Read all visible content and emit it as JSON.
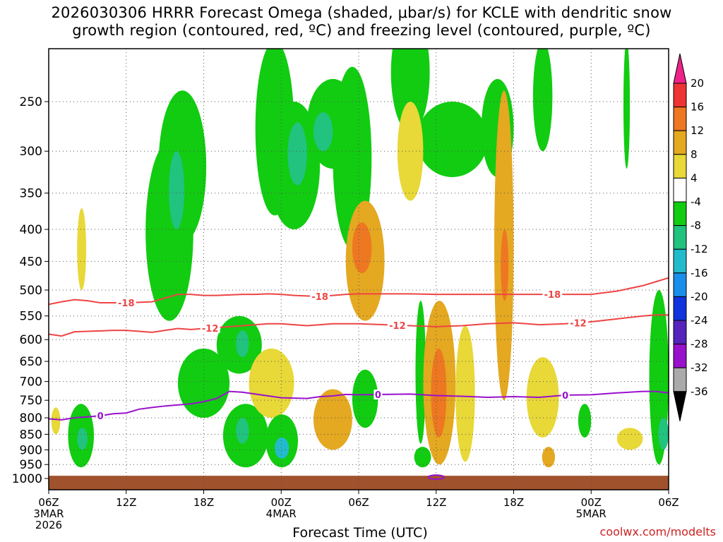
{
  "header": {
    "title": "2026030306 HRRR Forecast Omega (shaded, μbar/s) for KCLE with dendritic snow\ngrowth region (contoured, red, ºC) and freezing level (contoured, purple, ºC)"
  },
  "footer": {
    "xlabel": "Forecast Time (UTC)",
    "credit": "coolwx.com/modelts"
  },
  "chart_data": {
    "type": "heatmap",
    "title": "2026030306 HRRR Forecast Omega (shaded, μbar/s) for KCLE with dendritic snow growth region (contoured, red, ºC) and freezing level (contoured, purple, ºC)",
    "xlabel": "Forecast Time (UTC)",
    "ylabel": "",
    "y_scale": "log-pressure",
    "ylim": [
      1000,
      200
    ],
    "xlim": [
      0,
      48
    ],
    "grid": true,
    "y_ticks": [
      250,
      300,
      350,
      400,
      450,
      500,
      550,
      600,
      650,
      700,
      750,
      800,
      850,
      900,
      950,
      1000
    ],
    "x_ticks": [
      {
        "hour": 0,
        "label": [
          "06Z",
          "3MAR",
          "2026"
        ]
      },
      {
        "hour": 6,
        "label": [
          "12Z"
        ]
      },
      {
        "hour": 12,
        "label": [
          "18Z"
        ]
      },
      {
        "hour": 18,
        "label": [
          "00Z",
          "4MAR"
        ]
      },
      {
        "hour": 24,
        "label": [
          "06Z"
        ]
      },
      {
        "hour": 30,
        "label": [
          "12Z"
        ]
      },
      {
        "hour": 36,
        "label": [
          "18Z"
        ]
      },
      {
        "hour": 42,
        "label": [
          "00Z",
          "5MAR"
        ]
      },
      {
        "hour": 48,
        "label": [
          "06Z"
        ]
      }
    ],
    "colorbar": {
      "labels": [
        20,
        16,
        12,
        8,
        4,
        -4,
        -8,
        -12,
        -16,
        -20,
        -24,
        -28,
        -32,
        -36
      ],
      "bins": [
        {
          "from": 16,
          "to": 20,
          "color": "#ee3333"
        },
        {
          "from": 12,
          "to": 16,
          "color": "#ee7722"
        },
        {
          "from": 8,
          "to": 12,
          "color": "#e4a821"
        },
        {
          "from": 4,
          "to": 8,
          "color": "#e8d838"
        },
        {
          "from": -4,
          "to": 4,
          "color": "#ffffff"
        },
        {
          "from": -8,
          "to": -4,
          "color": "#11cc11"
        },
        {
          "from": -12,
          "to": -8,
          "color": "#22c27f"
        },
        {
          "from": -16,
          "to": -12,
          "color": "#22bbcc"
        },
        {
          "from": -20,
          "to": -16,
          "color": "#1a8eea"
        },
        {
          "from": -24,
          "to": -20,
          "color": "#1133dd"
        },
        {
          "from": -28,
          "to": -24,
          "color": "#5522bb"
        },
        {
          "from": -32,
          "to": -28,
          "color": "#9911cc"
        },
        {
          "from": -36,
          "to": -32,
          "color": "#aaaaaa"
        }
      ],
      "top_arrow_color": "#ee2288",
      "bottom_arrow_color": "#000000"
    },
    "series": [
      {
        "name": "-18",
        "color": "#ee4444",
        "x": [
          0,
          1,
          2,
          3,
          4,
          5,
          6,
          7,
          8,
          9,
          10,
          11,
          12,
          13,
          14,
          15,
          16,
          17,
          18,
          19,
          20,
          21,
          22,
          23,
          24,
          26,
          28,
          30,
          32,
          34,
          36,
          38,
          40,
          42,
          44,
          46,
          47,
          48
        ],
        "y": [
          527,
          522,
          518,
          520,
          524,
          524,
          524,
          523,
          522,
          515,
          508,
          508,
          510,
          510,
          509,
          508,
          508,
          507,
          508,
          510,
          511,
          512,
          510,
          508,
          507,
          507,
          507,
          508,
          508,
          508,
          508,
          508,
          508,
          508,
          502,
          492,
          485,
          478
        ],
        "labels_at": [
          6,
          21,
          39
        ]
      },
      {
        "name": "-12",
        "color": "#ee4444",
        "x": [
          0,
          1,
          2,
          3,
          4,
          5,
          6,
          7,
          8,
          9,
          10,
          11,
          12,
          13,
          14,
          15,
          16,
          17,
          18,
          19,
          20,
          21,
          22,
          23,
          24,
          26,
          28,
          30,
          32,
          34,
          36,
          38,
          40,
          42,
          44,
          46,
          47,
          48
        ],
        "y": [
          588,
          592,
          583,
          582,
          581,
          580,
          580,
          582,
          584,
          580,
          576,
          578,
          576,
          574,
          572,
          570,
          568,
          566,
          566,
          568,
          570,
          568,
          566,
          566,
          566,
          568,
          570,
          572,
          570,
          566,
          564,
          568,
          566,
          562,
          556,
          550,
          548,
          548
        ],
        "labels_at": [
          12.5,
          27,
          41
        ]
      },
      {
        "name": "0",
        "color": "#9911cc",
        "x": [
          0,
          1,
          2,
          3,
          4,
          5,
          6,
          7,
          8,
          9,
          10,
          11,
          12,
          13,
          14,
          15,
          16,
          17,
          18,
          19,
          20,
          21,
          22,
          23,
          24,
          26,
          28,
          30,
          32,
          34,
          36,
          38,
          40,
          42,
          44,
          46,
          47,
          48
        ],
        "y": [
          803,
          806,
          800,
          797,
          794,
          788,
          786,
          775,
          770,
          766,
          763,
          760,
          754,
          745,
          726,
          728,
          733,
          738,
          743,
          744,
          745,
          740,
          738,
          734,
          735,
          734,
          733,
          737,
          739,
          742,
          740,
          742,
          736,
          735,
          730,
          726,
          726,
          730
        ],
        "labels_at": [
          4,
          25.5,
          40
        ]
      }
    ],
    "freezing_level_small_loop": {
      "x": 30,
      "y": 995,
      "label": "0"
    },
    "omega_regions": [
      {
        "value": -6,
        "x": [
          1.5,
          3.5
        ],
        "p": [
          760,
          960
        ]
      },
      {
        "value": -10,
        "x": [
          2.2,
          3.0
        ],
        "p": [
          830,
          900
        ]
      },
      {
        "value": 5,
        "x": [
          0.2,
          0.9
        ],
        "p": [
          770,
          850
        ]
      },
      {
        "value": 5,
        "x": [
          2.2,
          2.9
        ],
        "p": [
          370,
          500
        ]
      },
      {
        "value": -6,
        "x": [
          7.5,
          11.2
        ],
        "p": [
          290,
          560
        ]
      },
      {
        "value": -6,
        "x": [
          8.5,
          12.2
        ],
        "p": [
          240,
          420
        ]
      },
      {
        "value": -10,
        "x": [
          9.3,
          10.5
        ],
        "p": [
          300,
          400
        ]
      },
      {
        "value": -6,
        "x": [
          10.0,
          14.0
        ],
        "p": [
          620,
          800
        ]
      },
      {
        "value": -6,
        "x": [
          13.0,
          16.5
        ],
        "p": [
          550,
          680
        ]
      },
      {
        "value": -10,
        "x": [
          14.5,
          15.5
        ],
        "p": [
          580,
          640
        ]
      },
      {
        "value": -6,
        "x": [
          13.5,
          17.0
        ],
        "p": [
          760,
          960
        ]
      },
      {
        "value": -10,
        "x": [
          14.5,
          15.5
        ],
        "p": [
          800,
          880
        ]
      },
      {
        "value": -6,
        "x": [
          16.0,
          19.0
        ],
        "p": [
          200,
          380
        ]
      },
      {
        "value": -6,
        "x": [
          17.0,
          21.0
        ],
        "p": [
          250,
          400
        ]
      },
      {
        "value": -10,
        "x": [
          18.5,
          20.0
        ],
        "p": [
          270,
          340
        ]
      },
      {
        "value": 10,
        "x": [
          16.0,
          18.5
        ],
        "p": [
          640,
          750
        ]
      },
      {
        "value": 5,
        "x": [
          15.5,
          19.0
        ],
        "p": [
          620,
          800
        ]
      },
      {
        "value": -6,
        "x": [
          16.8,
          19.3
        ],
        "p": [
          790,
          960
        ]
      },
      {
        "value": -14,
        "x": [
          17.5,
          18.6
        ],
        "p": [
          860,
          930
        ]
      },
      {
        "value": -6,
        "x": [
          20.0,
          24.0
        ],
        "p": [
          230,
          320
        ]
      },
      {
        "value": -10,
        "x": [
          20.5,
          22.0
        ],
        "p": [
          260,
          300
        ]
      },
      {
        "value": -6,
        "x": [
          22.0,
          25.0
        ],
        "p": [
          220,
          430
        ]
      },
      {
        "value": 8,
        "x": [
          23.0,
          26.0
        ],
        "p": [
          360,
          560
        ]
      },
      {
        "value": 12,
        "x": [
          23.5,
          25.0
        ],
        "p": [
          390,
          470
        ]
      },
      {
        "value": 8,
        "x": [
          20.5,
          23.5
        ],
        "p": [
          720,
          900
        ]
      },
      {
        "value": -6,
        "x": [
          23.5,
          25.5
        ],
        "p": [
          670,
          830
        ]
      },
      {
        "value": -6,
        "x": [
          26.5,
          29.5
        ],
        "p": [
          180,
          280
        ]
      },
      {
        "value": -6,
        "x": [
          28.5,
          34.0
        ],
        "p": [
          250,
          330
        ]
      },
      {
        "value": 5,
        "x": [
          27.0,
          29.0
        ],
        "p": [
          250,
          360
        ]
      },
      {
        "value": -6,
        "x": [
          28.4,
          29.2
        ],
        "p": [
          520,
          880
        ]
      },
      {
        "value": -6,
        "x": [
          28.3,
          29.6
        ],
        "p": [
          890,
          960
        ]
      },
      {
        "value": 10,
        "x": [
          29.0,
          31.5
        ],
        "p": [
          520,
          950
        ]
      },
      {
        "value": 14,
        "x": [
          29.6,
          30.8
        ],
        "p": [
          620,
          860
        ]
      },
      {
        "value": 5,
        "x": [
          31.5,
          33.0
        ],
        "p": [
          570,
          940
        ]
      },
      {
        "value": -6,
        "x": [
          33.5,
          36.0
        ],
        "p": [
          230,
          330
        ]
      },
      {
        "value": 8,
        "x": [
          34.5,
          36.0
        ],
        "p": [
          240,
          750
        ]
      },
      {
        "value": 12,
        "x": [
          35.0,
          35.6
        ],
        "p": [
          400,
          520
        ]
      },
      {
        "value": -6,
        "x": [
          37.5,
          39.0
        ],
        "p": [
          200,
          300
        ]
      },
      {
        "value": 5,
        "x": [
          37.0,
          39.5
        ],
        "p": [
          640,
          860
        ]
      },
      {
        "value": 8,
        "x": [
          38.2,
          39.2
        ],
        "p": [
          890,
          960
        ]
      },
      {
        "value": -6,
        "x": [
          41.0,
          42.0
        ],
        "p": [
          760,
          860
        ]
      },
      {
        "value": -6,
        "x": [
          44.5,
          45.0
        ],
        "p": [
          200,
          320
        ]
      },
      {
        "value": 5,
        "x": [
          44.0,
          46.0
        ],
        "p": [
          830,
          900
        ]
      },
      {
        "value": -6,
        "x": [
          46.5,
          48.0
        ],
        "p": [
          500,
          950
        ]
      },
      {
        "value": -10,
        "x": [
          47.2,
          48.0
        ],
        "p": [
          800,
          900
        ]
      }
    ],
    "ground": {
      "color": "#a0522d",
      "p_top": 990
    }
  }
}
